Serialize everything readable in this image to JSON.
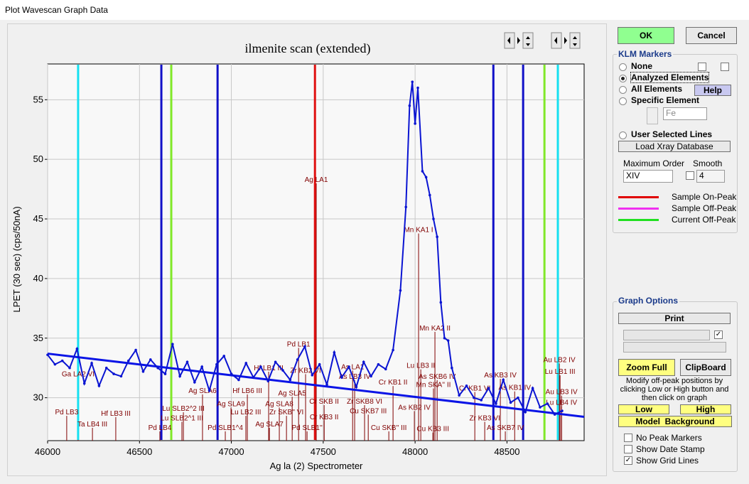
{
  "window_title": "Plot Wavescan Graph Data",
  "chart_data": {
    "type": "line",
    "title": "ilmenite scan (extended)",
    "xlabel": "Ag la (2) Spectrometer",
    "ylabel": "LPET (30 sec) (cps/50nA)",
    "xlim": [
      46000,
      48920
    ],
    "ylim": [
      26.4,
      58
    ],
    "xticks": [
      46000,
      46500,
      47000,
      47500,
      48000,
      48500
    ],
    "yticks": [
      30,
      35,
      40,
      45,
      50,
      55
    ],
    "grid": true,
    "color": "#0a14d2",
    "x": [
      46000,
      46040,
      46080,
      46120,
      46160,
      46200,
      46240,
      46280,
      46320,
      46360,
      46400,
      46440,
      46480,
      46520,
      46560,
      46600,
      46640,
      46680,
      46720,
      46760,
      46800,
      46840,
      46880,
      46920,
      46960,
      47000,
      47040,
      47080,
      47120,
      47160,
      47200,
      47240,
      47280,
      47320,
      47360,
      47400,
      47440,
      47480,
      47520,
      47560,
      47600,
      47640,
      47680,
      47720,
      47760,
      47800,
      47840,
      47880,
      47920,
      47950,
      47970,
      47985,
      48000,
      48015,
      48040,
      48060,
      48080,
      48100,
      48120,
      48140,
      48160,
      48180,
      48200,
      48240,
      48280,
      48320,
      48360,
      48400,
      48440,
      48480,
      48520,
      48560,
      48600,
      48640,
      48680,
      48720,
      48760,
      48800
    ],
    "values": [
      33.6,
      32.8,
      33.1,
      32.5,
      34.1,
      31.2,
      32.9,
      31.0,
      32.5,
      32.0,
      31.8,
      33.1,
      34.0,
      32.2,
      33.2,
      32.5,
      32.0,
      34.5,
      31.8,
      33.0,
      31.3,
      32.6,
      30.6,
      32.8,
      33.5,
      32.0,
      31.5,
      32.9,
      31.7,
      32.6,
      31.4,
      33.0,
      32.3,
      31.5,
      33.2,
      34.3,
      31.9,
      32.8,
      31.1,
      33.8,
      31.7,
      32.6,
      30.9,
      33.0,
      31.8,
      32.8,
      32.4,
      34.0,
      39.0,
      46.0,
      54.5,
      56.5,
      53.0,
      56.0,
      49.0,
      48.5,
      47.0,
      45.0,
      43.5,
      38.0,
      35.0,
      34.8,
      32.5,
      30.2,
      31.0,
      30.0,
      29.8,
      30.8,
      29.5,
      31.5,
      29.6,
      30.0,
      28.8,
      30.8,
      29.2,
      29.5,
      28.6,
      28.9
    ],
    "background_fit": {
      "x": [
        46000,
        48920
      ],
      "values": [
        33.7,
        28.4
      ],
      "color": "#0a14e6"
    },
    "position_lines": [
      {
        "x": 46166,
        "color": "#16e0f0"
      },
      {
        "x": 46619,
        "color": "#1010c8"
      },
      {
        "x": 46673,
        "color": "#80e828"
      },
      {
        "x": 46925,
        "color": "#1010c8"
      },
      {
        "x": 47455,
        "color": "#e01010"
      },
      {
        "x": 48426,
        "color": "#1010c8"
      },
      {
        "x": 48588,
        "color": "#1010c8"
      },
      {
        "x": 48704,
        "color": "#80e828"
      },
      {
        "x": 48777,
        "color": "#16e0f0"
      }
    ],
    "klm_color": "#800000",
    "klm_lines": [
      {
        "label": "Ag LA1",
        "x": 47462,
        "y": 48.1
      },
      {
        "label": "Mn KA1 I",
        "x": 48019,
        "y": 43.9
      },
      {
        "label": "Mn KA2 II",
        "x": 48108,
        "y": 35.65
      },
      {
        "label": "Pd LB1",
        "x": 47366,
        "y": 34.3
      },
      {
        "label": "Lu LB3 II",
        "x": 48031,
        "y": 32.5
      },
      {
        "label": "As SKB6 IV",
        "x": 48120,
        "y": 31.6
      },
      {
        "label": "Mn SKA'' II",
        "x": 48100,
        "y": 30.9
      },
      {
        "label": "Cr KB1 II",
        "x": 47880,
        "y": 31.1
      },
      {
        "label": "Au LB2 IV",
        "x": 48785,
        "y": 33.0
      },
      {
        "label": "Lu LB1 III",
        "x": 48789,
        "y": 32.0
      },
      {
        "label": "As KB3 IV",
        "x": 48464,
        "y": 31.7
      },
      {
        "label": "As KB1 IV",
        "x": 48542,
        "y": 30.65
      },
      {
        "label": "Au LB3 IV",
        "x": 48797,
        "y": 30.3
      },
      {
        "label": "Lu LB4 IV",
        "x": 48797,
        "y": 29.4
      },
      {
        "label": "Ga LA2 VI",
        "x": 46166,
        "y": 31.8
      },
      {
        "label": "Hf LB1 III",
        "x": 47203,
        "y": 32.3
      },
      {
        "label": "Zr KB2 VI",
        "x": 47404,
        "y": 32.1
      },
      {
        "label": "As LA1",
        "x": 47660,
        "y": 32.4
      },
      {
        "label": "As LB3 IV",
        "x": 47671,
        "y": 31.6
      },
      {
        "label": "Ag SLA6",
        "x": 46843,
        "y": 30.4
      },
      {
        "label": "Hf LB6 III",
        "x": 47087,
        "y": 30.4
      },
      {
        "label": "Ag SLA5",
        "x": 47331,
        "y": 30.2
      },
      {
        "label": "Ag SLA9",
        "x": 46998,
        "y": 29.3
      },
      {
        "label": "Ag SLA8",
        "x": 47261,
        "y": 29.3
      },
      {
        "label": "Cr SKB II",
        "x": 47505,
        "y": 29.5
      },
      {
        "label": "Zr SKB8 VI",
        "x": 47725,
        "y": 29.5
      },
      {
        "label": "Zr SKB'' VI",
        "x": 47300,
        "y": 28.6
      },
      {
        "label": "Lu LB2 III",
        "x": 47079,
        "y": 28.6
      },
      {
        "label": "Cu SKB7 III",
        "x": 47745,
        "y": 28.7
      },
      {
        "label": "As KB2 IV",
        "x": 47996,
        "y": 29.0
      },
      {
        "label": "Lu SLB2^2 III",
        "x": 46739,
        "y": 28.9
      },
      {
        "label": "Lu SLB2^1 III",
        "x": 46731,
        "y": 28.1
      },
      {
        "label": "Cr KB3 II",
        "x": 47505,
        "y": 28.2
      },
      {
        "label": "Pd LB3",
        "x": 46104,
        "y": 28.6
      },
      {
        "label": "Hf LB3 III",
        "x": 46371,
        "y": 28.5
      },
      {
        "label": "Ta LB4 III",
        "x": 46244,
        "y": 27.6
      },
      {
        "label": "Pd LB4",
        "x": 46611,
        "y": 27.3
      },
      {
        "label": "Pd SLB1^4",
        "x": 46967,
        "y": 27.3
      },
      {
        "label": "Ag SLA7",
        "x": 47207,
        "y": 27.6
      },
      {
        "label": "Pd SLB1''",
        "x": 47412,
        "y": 27.3
      },
      {
        "label": "Cu SKB'' III",
        "x": 47857,
        "y": 27.3
      },
      {
        "label": "Cu KB3 III",
        "x": 48097,
        "y": 27.2
      },
      {
        "label": "Zr KB3 VI",
        "x": 48379,
        "y": 28.1
      },
      {
        "label": "As SKB7 IV",
        "x": 48491,
        "y": 27.3
      },
      {
        "label": "Cr KB1 VI",
        "x": 48325,
        "y": 30.6
      }
    ]
  },
  "buttons": {
    "ok": "OK",
    "cancel": "Cancel"
  },
  "klm_markers": {
    "title": "KLM Markers",
    "options": [
      "None",
      "Analyzed Elements",
      "All Elements",
      "Specific Element",
      "User Selected Lines"
    ],
    "selected": 1,
    "help": "Help",
    "element": "Fe",
    "load": "Load Xray Database",
    "max_order_label": "Maximum Order",
    "smooth_label": "Smooth",
    "max_order": "XIV",
    "smooth": "4",
    "legend": [
      {
        "label": "Sample On-Peak",
        "color": "#e00000"
      },
      {
        "label": "Sample Off-Peak",
        "color": "#f030f0"
      },
      {
        "label": "Current Off-Peak",
        "color": "#20e020"
      }
    ]
  },
  "graph_options": {
    "title": "Graph Options",
    "print": "Print",
    "zoom_full": "Zoom Full",
    "clipboard": "ClipBoard",
    "instructions": [
      "Modify off-peak positions by",
      "clicking Low or High button and",
      "then click on graph"
    ],
    "low": "Low",
    "high": "High",
    "model_background": "Model  Background",
    "checkboxes": [
      {
        "label": "No Peak Markers",
        "checked": false
      },
      {
        "label": "Show Date Stamp",
        "checked": false
      },
      {
        "label": "Show Grid Lines",
        "checked": true
      }
    ]
  }
}
